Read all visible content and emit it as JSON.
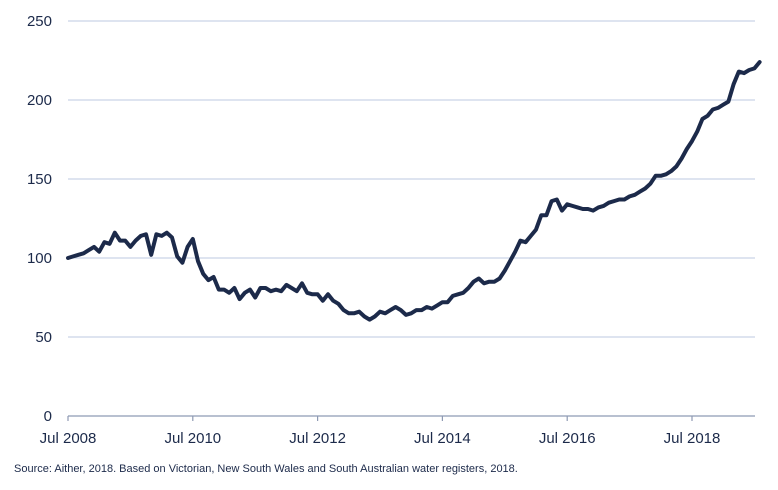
{
  "colors": {
    "line": "#1c2a4a",
    "grid": "#c9d3e6",
    "axis": "#8e9ab3",
    "text": "#1c2a4a"
  },
  "chart_data": {
    "type": "line",
    "title": "",
    "xlabel": "",
    "ylabel": "",
    "grid": true,
    "ylim": [
      0,
      250
    ],
    "yticks": [
      0,
      50,
      100,
      150,
      200,
      250
    ],
    "xlim": [
      "Jul 2008",
      "Jan 2019"
    ],
    "xticks": [
      "Jul 2008",
      "Jul 2010",
      "Jul 2012",
      "Jul 2014",
      "Jul 2016",
      "Jul 2018"
    ],
    "series": [
      {
        "values": [
          [
            "Jul 2008",
            100
          ],
          [
            "Aug 2008",
            101
          ],
          [
            "Sep 2008",
            102
          ],
          [
            "Oct 2008",
            103
          ],
          [
            "Nov 2008",
            105
          ],
          [
            "Dec 2008",
            107
          ],
          [
            "Jan 2009",
            104
          ],
          [
            "Feb 2009",
            110
          ],
          [
            "Mar 2009",
            109
          ],
          [
            "Apr 2009",
            116
          ],
          [
            "May 2009",
            111
          ],
          [
            "Jun 2009",
            111
          ],
          [
            "Jul 2009",
            107
          ],
          [
            "Aug 2009",
            111
          ],
          [
            "Sep 2009",
            114
          ],
          [
            "Oct 2009",
            115
          ],
          [
            "Nov 2009",
            102
          ],
          [
            "Dec 2009",
            115
          ],
          [
            "Jan 2010",
            114
          ],
          [
            "Feb 2010",
            116
          ],
          [
            "Mar 2010",
            113
          ],
          [
            "Apr 2010",
            101
          ],
          [
            "May 2010",
            97
          ],
          [
            "Jun 2010",
            107
          ],
          [
            "Jul 2010",
            112
          ],
          [
            "Aug 2010",
            98
          ],
          [
            "Sep 2010",
            90
          ],
          [
            "Oct 2010",
            86
          ],
          [
            "Nov 2010",
            88
          ],
          [
            "Dec 2010",
            80
          ],
          [
            "Jan 2011",
            80
          ],
          [
            "Feb 2011",
            78
          ],
          [
            "Mar 2011",
            81
          ],
          [
            "Apr 2011",
            74
          ],
          [
            "May 2011",
            78
          ],
          [
            "Jun 2011",
            80
          ],
          [
            "Jul 2011",
            75
          ],
          [
            "Aug 2011",
            81
          ],
          [
            "Sep 2011",
            81
          ],
          [
            "Oct 2011",
            79
          ],
          [
            "Nov 2011",
            80
          ],
          [
            "Dec 2011",
            79
          ],
          [
            "Jan 2012",
            83
          ],
          [
            "Feb 2012",
            81
          ],
          [
            "Mar 2012",
            79
          ],
          [
            "Apr 2012",
            84
          ],
          [
            "May 2012",
            78
          ],
          [
            "Jun 2012",
            77
          ],
          [
            "Jul 2012",
            77
          ],
          [
            "Aug 2012",
            73
          ],
          [
            "Sep 2012",
            77
          ],
          [
            "Oct 2012",
            73
          ],
          [
            "Nov 2012",
            71
          ],
          [
            "Dec 2012",
            67
          ],
          [
            "Jan 2013",
            65
          ],
          [
            "Feb 2013",
            65
          ],
          [
            "Mar 2013",
            66
          ],
          [
            "Apr 2013",
            63
          ],
          [
            "May 2013",
            61
          ],
          [
            "Jun 2013",
            63
          ],
          [
            "Jul 2013",
            66
          ],
          [
            "Aug 2013",
            65
          ],
          [
            "Sep 2013",
            67
          ],
          [
            "Oct 2013",
            69
          ],
          [
            "Nov 2013",
            67
          ],
          [
            "Dec 2013",
            64
          ],
          [
            "Jan 2014",
            65
          ],
          [
            "Feb 2014",
            67
          ],
          [
            "Mar 2014",
            67
          ],
          [
            "Apr 2014",
            69
          ],
          [
            "May 2014",
            68
          ],
          [
            "Jun 2014",
            70
          ],
          [
            "Jul 2014",
            72
          ],
          [
            "Aug 2014",
            72
          ],
          [
            "Sep 2014",
            76
          ],
          [
            "Oct 2014",
            77
          ],
          [
            "Nov 2014",
            78
          ],
          [
            "Dec 2014",
            81
          ],
          [
            "Jan 2015",
            85
          ],
          [
            "Feb 2015",
            87
          ],
          [
            "Mar 2015",
            84
          ],
          [
            "Apr 2015",
            85
          ],
          [
            "May 2015",
            85
          ],
          [
            "Jun 2015",
            87
          ],
          [
            "Jul 2015",
            92
          ],
          [
            "Aug 2015",
            98
          ],
          [
            "Sep 2015",
            104
          ],
          [
            "Oct 2015",
            111
          ],
          [
            "Nov 2015",
            110
          ],
          [
            "Dec 2015",
            114
          ],
          [
            "Jan 2016",
            118
          ],
          [
            "Feb 2016",
            127
          ],
          [
            "Mar 2016",
            127
          ],
          [
            "Apr 2016",
            136
          ],
          [
            "May 2016",
            137
          ],
          [
            "Jun 2016",
            130
          ],
          [
            "Jul 2016",
            134
          ],
          [
            "Aug 2016",
            133
          ],
          [
            "Sep 2016",
            132
          ],
          [
            "Oct 2016",
            131
          ],
          [
            "Nov 2016",
            131
          ],
          [
            "Dec 2016",
            130
          ],
          [
            "Jan 2017",
            132
          ],
          [
            "Feb 2017",
            133
          ],
          [
            "Mar 2017",
            135
          ],
          [
            "Apr 2017",
            136
          ],
          [
            "May 2017",
            137
          ],
          [
            "Jun 2017",
            137
          ],
          [
            "Jul 2017",
            139
          ],
          [
            "Aug 2017",
            140
          ],
          [
            "Sep 2017",
            142
          ],
          [
            "Oct 2017",
            144
          ],
          [
            "Nov 2017",
            147
          ],
          [
            "Dec 2017",
            152
          ],
          [
            "Jan 2018",
            152
          ],
          [
            "Feb 2018",
            153
          ],
          [
            "Mar 2018",
            155
          ],
          [
            "Apr 2018",
            158
          ],
          [
            "May 2018",
            163
          ],
          [
            "Jun 2018",
            169
          ],
          [
            "Jul 2018",
            174
          ],
          [
            "Aug 2018",
            180
          ],
          [
            "Sep 2018",
            188
          ],
          [
            "Oct 2018",
            190
          ],
          [
            "Nov 2018",
            194
          ],
          [
            "Dec 2018",
            195
          ],
          [
            "Jan 2019",
            197
          ],
          [
            "Feb 2019",
            199
          ],
          [
            "Mar 2019",
            210
          ],
          [
            "Apr 2019",
            218
          ],
          [
            "May 2019",
            217
          ],
          [
            "Jun 2019",
            219
          ],
          [
            "Jul 2019",
            220
          ],
          [
            "Aug 2019",
            224
          ]
        ]
      }
    ]
  },
  "source": "Source: Aither, 2018. Based on Victorian, New South Wales and South Australian water registers, 2018."
}
